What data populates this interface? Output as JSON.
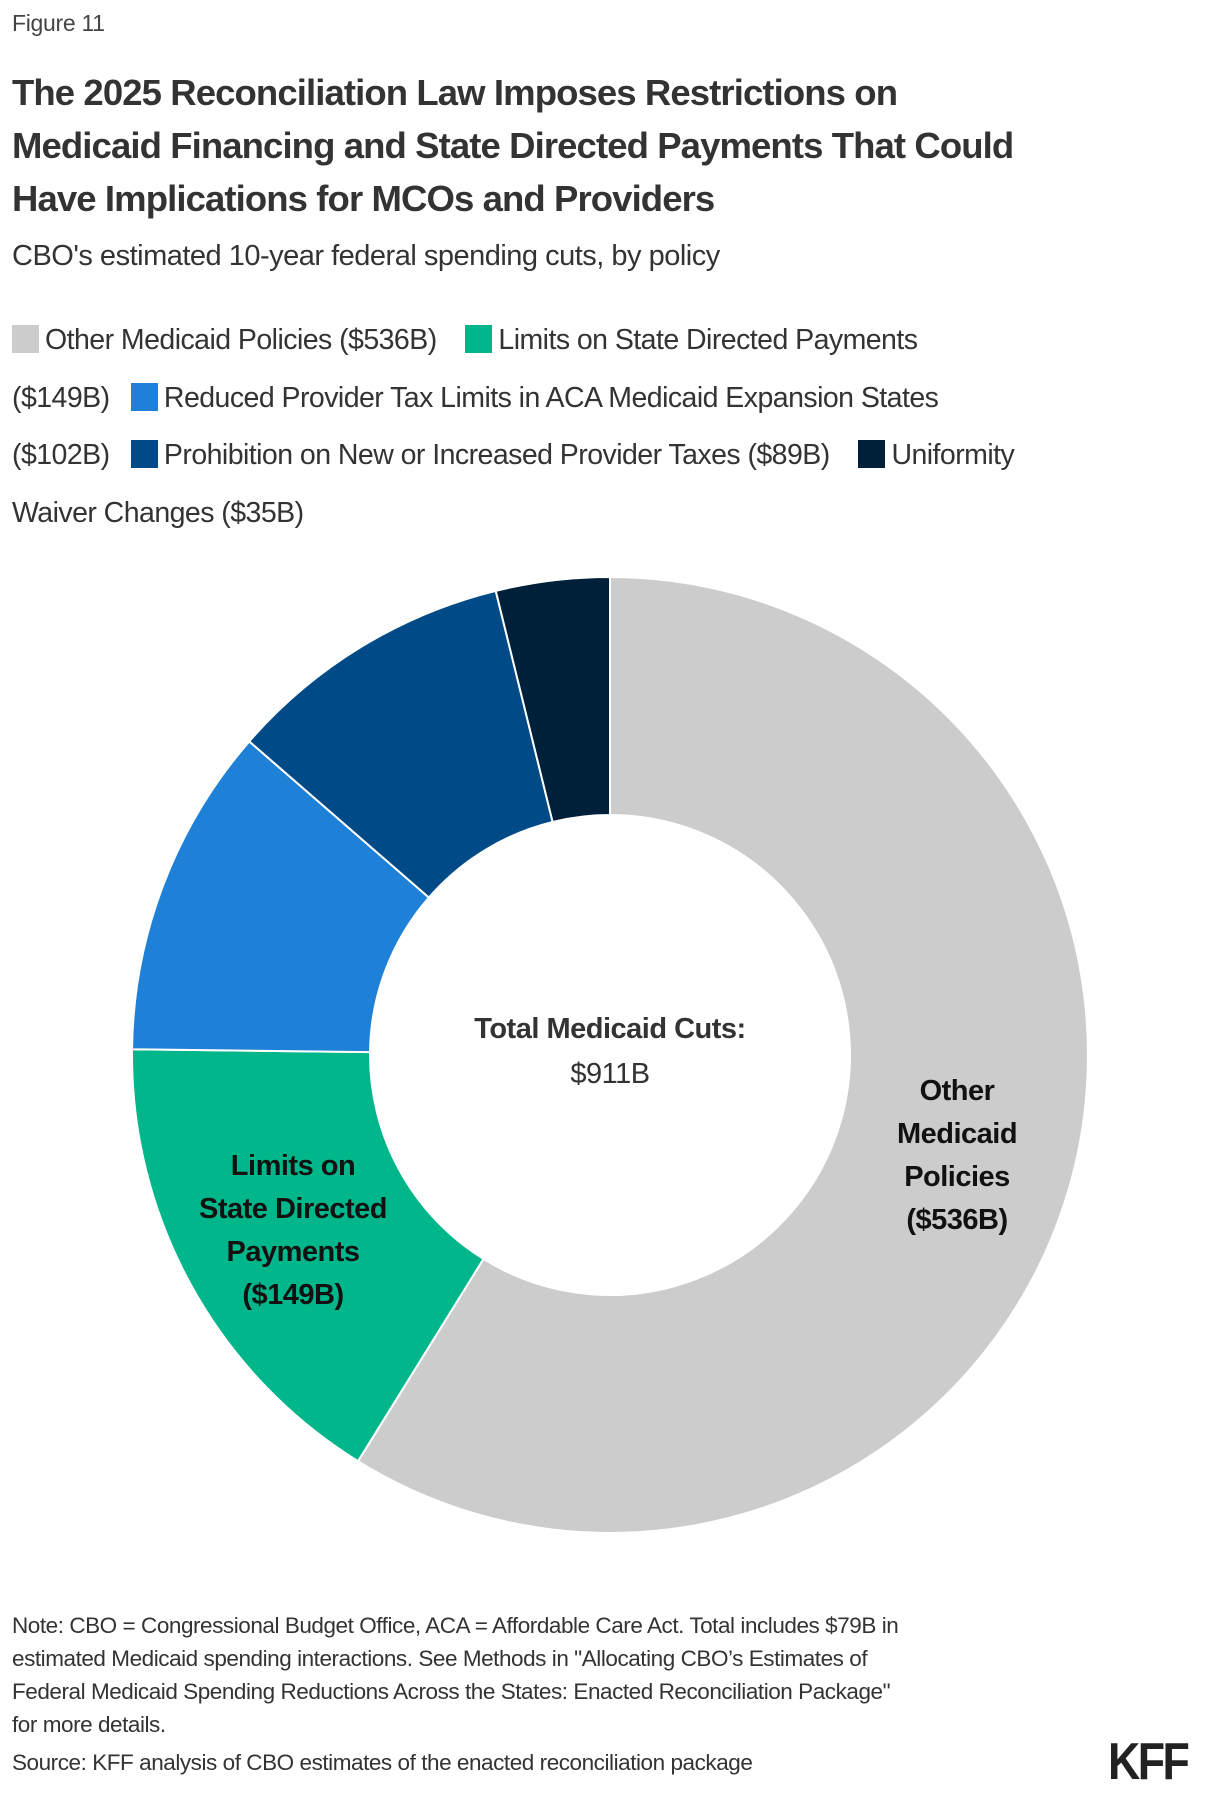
{
  "figure_label": "Figure 11",
  "title_lines": [
    "The 2025 Reconciliation Law Imposes Restrictions on",
    "Medicaid Financing and State Directed Payments That Could",
    "Have Implications for MCOs and Providers"
  ],
  "subtitle": "CBO's estimated 10-year federal spending cuts, by policy",
  "legend_items": [
    {
      "label": "Other Medicaid Policies ($536B)",
      "color": "#CCCCCC"
    },
    {
      "label": "Limits on State Directed Payments ($149B)",
      "color": "#00B68A"
    },
    {
      "label": "Reduced Provider Tax Limits in ACA Medicaid Expansion States ($102B)",
      "color": "#1E80D6"
    },
    {
      "label": "Prohibition on New or Increased Provider Taxes ($89B)",
      "color": "#004A87"
    },
    {
      "label": "Uniformity Waiver Changes ($35B)",
      "color": "#001F38"
    }
  ],
  "legend_text": {
    "line1_a": "Other Medicaid Policies ($536B)",
    "line1_b": "Limits on State Directed Payments",
    "line2_a": "($149B)",
    "line2_b": "Reduced Provider Tax Limits in ACA Medicaid Expansion States",
    "line3_a": "($102B)",
    "line3_b": "Prohibition on New or Increased Provider Taxes ($89B)",
    "line3_c": "Uniformity",
    "line4_a": "Waiver Changes ($35B)"
  },
  "center": {
    "title": "Total Medicaid Cuts:",
    "value": "$911B"
  },
  "segment_labels": {
    "other": [
      "Other",
      "Medicaid",
      "Policies",
      "($536B)"
    ],
    "sdp": [
      "Limits on",
      "State Directed",
      "Payments",
      "($149B)"
    ]
  },
  "note_lines": [
    "Note: CBO = Congressional Budget Office, ACA = Affordable Care Act. Total includes $79B in",
    "estimated Medicaid spending interactions. See Methods in \"Allocating CBO’s Estimates of",
    "Federal Medicaid Spending Reductions Across the States: Enacted Reconciliation Package\"",
    "for more details."
  ],
  "source": "Source: KFF analysis of CBO estimates of the enacted reconciliation package",
  "logo": "KFF",
  "chart_data": {
    "type": "pie",
    "variant": "donut",
    "title": "The 2025 Reconciliation Law Imposes Restrictions on Medicaid Financing and State Directed Payments That Could Have Implications for MCOs and Providers",
    "subtitle": "CBO's estimated 10-year federal spending cuts, by policy",
    "units": "billions of dollars",
    "categories": [
      "Other Medicaid Policies",
      "Limits on State Directed Payments",
      "Reduced Provider Tax Limits in ACA Medicaid Expansion States",
      "Prohibition on New or Increased Provider Taxes",
      "Uniformity Waiver Changes"
    ],
    "values": [
      536,
      149,
      102,
      89,
      35
    ],
    "colors": [
      "#CCCCCC",
      "#00B68A",
      "#1E80D6",
      "#004A87",
      "#001F38"
    ],
    "total_label": "Total Medicaid Cuts: $911B",
    "total": 911,
    "start_angle_deg": 0,
    "direction": "clockwise",
    "legend_position": "top",
    "annotations": [
      "Other Medicaid Policies ($536B)",
      "Limits on State Directed Payments ($149B)"
    ]
  }
}
